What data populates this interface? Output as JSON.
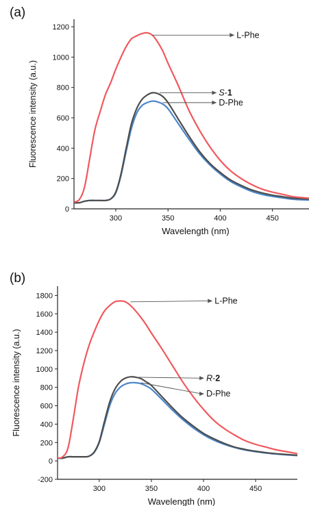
{
  "colors": {
    "red": "#f0585c",
    "dark": "#4d4d4d",
    "blue": "#4a86c8",
    "axis": "#222222",
    "annot": "#555555"
  },
  "chart_data": [
    {
      "type": "line",
      "panel_label": "(a)",
      "xlabel": "Wavelength (nm)",
      "ylabel": "Fluorescence intensity (a.u.)",
      "xlim": [
        260,
        485
      ],
      "ylim": [
        0,
        1250
      ],
      "xticks": [
        300,
        350,
        400,
        450
      ],
      "yticks": [
        0,
        200,
        400,
        600,
        800,
        1000,
        1200
      ],
      "series": [
        {
          "name": "L-Phe",
          "color_key": "red",
          "x": [
            260,
            265,
            270,
            275,
            280,
            285,
            290,
            295,
            300,
            305,
            310,
            315,
            320,
            325,
            330,
            335,
            340,
            345,
            350,
            360,
            370,
            380,
            390,
            400,
            410,
            420,
            430,
            440,
            450,
            460,
            470,
            485
          ],
          "y": [
            45,
            60,
            140,
            330,
            520,
            640,
            750,
            830,
            920,
            1000,
            1070,
            1120,
            1140,
            1155,
            1160,
            1145,
            1100,
            1040,
            960,
            810,
            650,
            520,
            410,
            320,
            250,
            200,
            160,
            130,
            110,
            95,
            80,
            70
          ]
        },
        {
          "name": "S-1",
          "color_key": "dark",
          "x": [
            260,
            265,
            270,
            275,
            280,
            285,
            290,
            295,
            300,
            305,
            310,
            315,
            320,
            325,
            330,
            335,
            340,
            345,
            350,
            360,
            370,
            380,
            390,
            400,
            410,
            420,
            430,
            440,
            450,
            460,
            470,
            485
          ],
          "y": [
            40,
            40,
            50,
            55,
            55,
            55,
            55,
            65,
            110,
            230,
            400,
            560,
            660,
            720,
            750,
            765,
            760,
            740,
            700,
            590,
            480,
            380,
            300,
            240,
            190,
            155,
            125,
            105,
            90,
            80,
            70,
            65
          ]
        },
        {
          "name": "D-Phe",
          "color_key": "blue",
          "x": [
            260,
            265,
            270,
            275,
            280,
            285,
            290,
            295,
            300,
            305,
            310,
            315,
            320,
            325,
            330,
            335,
            340,
            345,
            350,
            360,
            370,
            380,
            390,
            400,
            410,
            420,
            430,
            440,
            450,
            460,
            470,
            485
          ],
          "y": [
            40,
            40,
            50,
            55,
            55,
            55,
            55,
            65,
            105,
            220,
            380,
            530,
            630,
            680,
            700,
            710,
            705,
            690,
            660,
            560,
            460,
            365,
            290,
            230,
            180,
            145,
            115,
            95,
            82,
            72,
            63,
            58
          ]
        }
      ],
      "annotations": [
        {
          "series_key": "L-Phe",
          "text": "L-Phe",
          "point_x": 335,
          "point_y": 1145,
          "label_x": 415,
          "label_y": 1145
        },
        {
          "series_key": "S-1",
          "italic": "S",
          "rest": "-1",
          "point_x": 342,
          "point_y": 765,
          "label_x": 398,
          "label_y": 765
        },
        {
          "series_key": "D-Phe",
          "text": "D-Phe",
          "point_x": 345,
          "point_y": 700,
          "label_x": 398,
          "label_y": 700
        }
      ]
    },
    {
      "type": "line",
      "panel_label": "(b)",
      "xlabel": "Wavelength (nm)",
      "ylabel": "Fluorescence intensity (a.u.)",
      "xlim": [
        260,
        490
      ],
      "ylim": [
        -200,
        1900
      ],
      "xticks": [
        300,
        350,
        400,
        450
      ],
      "yticks": [
        -200,
        0,
        200,
        400,
        600,
        800,
        1000,
        1200,
        1400,
        1600,
        1800
      ],
      "series": [
        {
          "name": "L-Phe",
          "color_key": "red",
          "x": [
            260,
            265,
            270,
            275,
            280,
            285,
            290,
            295,
            300,
            305,
            310,
            315,
            320,
            325,
            330,
            335,
            340,
            345,
            350,
            360,
            370,
            380,
            390,
            400,
            410,
            420,
            430,
            440,
            450,
            460,
            470,
            490
          ],
          "y": [
            30,
            45,
            140,
            450,
            800,
            1050,
            1250,
            1400,
            1530,
            1630,
            1690,
            1730,
            1740,
            1730,
            1690,
            1630,
            1560,
            1480,
            1390,
            1220,
            1040,
            860,
            700,
            560,
            440,
            350,
            280,
            220,
            180,
            150,
            120,
            80
          ]
        },
        {
          "name": "R-2",
          "color_key": "dark",
          "x": [
            260,
            265,
            270,
            275,
            280,
            285,
            290,
            295,
            300,
            305,
            310,
            315,
            320,
            325,
            330,
            335,
            340,
            345,
            350,
            360,
            370,
            380,
            390,
            400,
            410,
            420,
            430,
            440,
            450,
            460,
            470,
            490
          ],
          "y": [
            30,
            30,
            45,
            45,
            45,
            45,
            50,
            95,
            210,
            430,
            640,
            780,
            860,
            900,
            915,
            910,
            895,
            860,
            820,
            700,
            580,
            470,
            380,
            300,
            240,
            190,
            150,
            125,
            105,
            90,
            78,
            62
          ]
        },
        {
          "name": "D-Phe",
          "color_key": "blue",
          "x": [
            260,
            265,
            270,
            275,
            280,
            285,
            290,
            295,
            300,
            305,
            310,
            315,
            320,
            325,
            330,
            335,
            340,
            345,
            350,
            360,
            370,
            380,
            390,
            400,
            410,
            420,
            430,
            440,
            450,
            460,
            470,
            490
          ],
          "y": [
            30,
            30,
            45,
            45,
            45,
            45,
            50,
            90,
            200,
            400,
            600,
            730,
            800,
            835,
            850,
            850,
            840,
            815,
            780,
            670,
            555,
            450,
            360,
            285,
            225,
            180,
            145,
            118,
            100,
            86,
            74,
            58
          ]
        }
      ],
      "annotations": [
        {
          "series_key": "L-Phe",
          "text": "L-Phe",
          "point_x": 330,
          "point_y": 1730,
          "label_x": 410,
          "label_y": 1740
        },
        {
          "series_key": "R-2",
          "italic": "R",
          "rest": "-2",
          "point_x": 335,
          "point_y": 910,
          "label_x": 402,
          "label_y": 900
        },
        {
          "series_key": "D-Phe",
          "text": "D-Phe",
          "point_x": 340,
          "point_y": 850,
          "label_x": 402,
          "label_y": 730
        }
      ]
    }
  ]
}
